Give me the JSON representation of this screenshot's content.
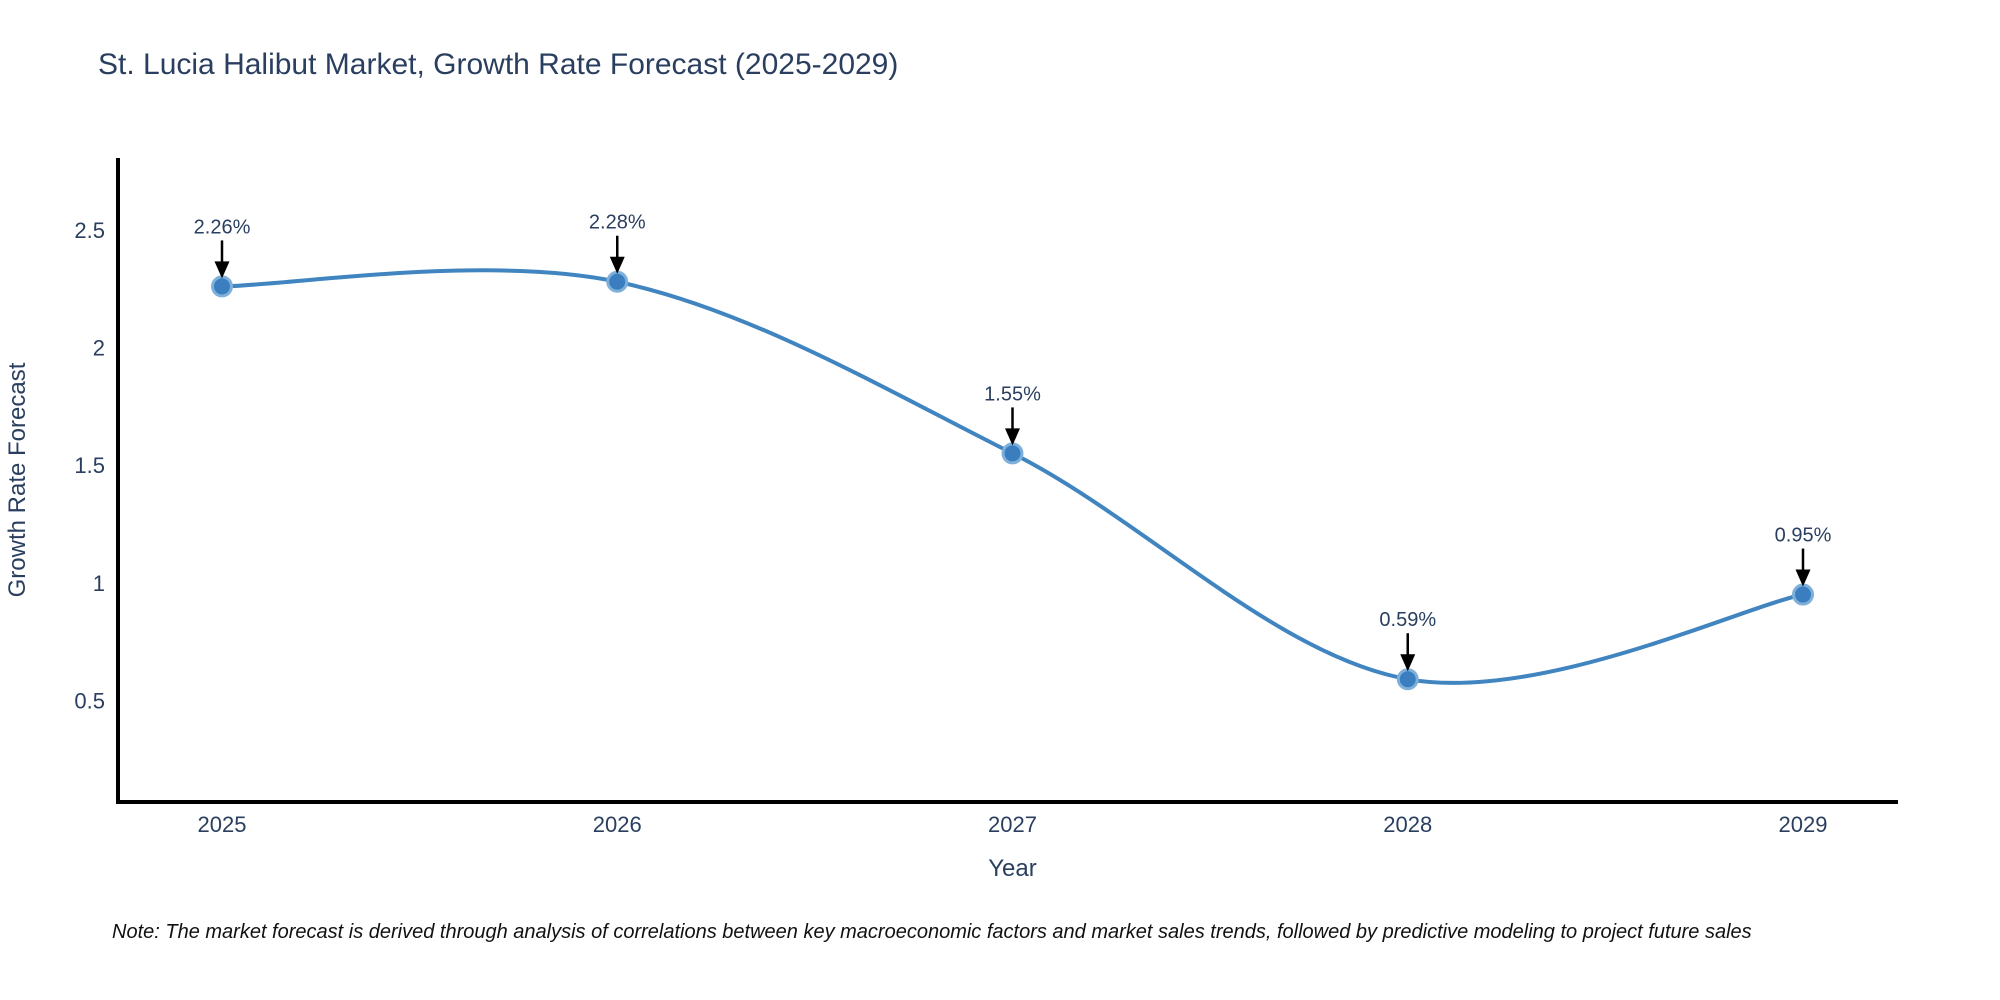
{
  "title": "St. Lucia Halibut Market, Growth Rate Forecast (2025-2029)",
  "note": "Note: The market forecast is derived through analysis of correlations between key macroeconomic factors and market sales trends, followed by predictive modeling to project future sales",
  "chart_data": {
    "type": "line",
    "title": "St. Lucia Halibut Market, Growth Rate Forecast (2025-2029)",
    "x": [
      "2025",
      "2026",
      "2027",
      "2028",
      "2029"
    ],
    "series": [
      {
        "name": "Growth Rate Forecast",
        "values": [
          2.26,
          2.28,
          1.55,
          0.59,
          0.95
        ]
      }
    ],
    "point_labels": [
      "2.26%",
      "2.28%",
      "1.55%",
      "0.59%",
      "0.95%"
    ],
    "xlabel": "Year",
    "ylabel": "Growth Rate Forecast",
    "yticks": [
      0.5,
      1,
      1.5,
      2,
      2.5
    ],
    "ytick_labels": [
      "0.5",
      "1",
      "1.5",
      "2",
      "2.5"
    ],
    "ylim": [
      0.068,
      2.806
    ],
    "grid": false,
    "legend": false,
    "line_shape": "spline",
    "annotation_style": "value label above point with downward black arrow",
    "colors": {
      "line": "#4084c0",
      "marker_fill": "#3a7ebf",
      "marker_edge": "#7fb0da",
      "axis_line": "#000000",
      "tick_text": "#2a3f5f",
      "title_text": "#2a3f5f",
      "annotation_text": "#2a3f5f",
      "arrow": "#000000",
      "note_text": "#111111"
    }
  }
}
